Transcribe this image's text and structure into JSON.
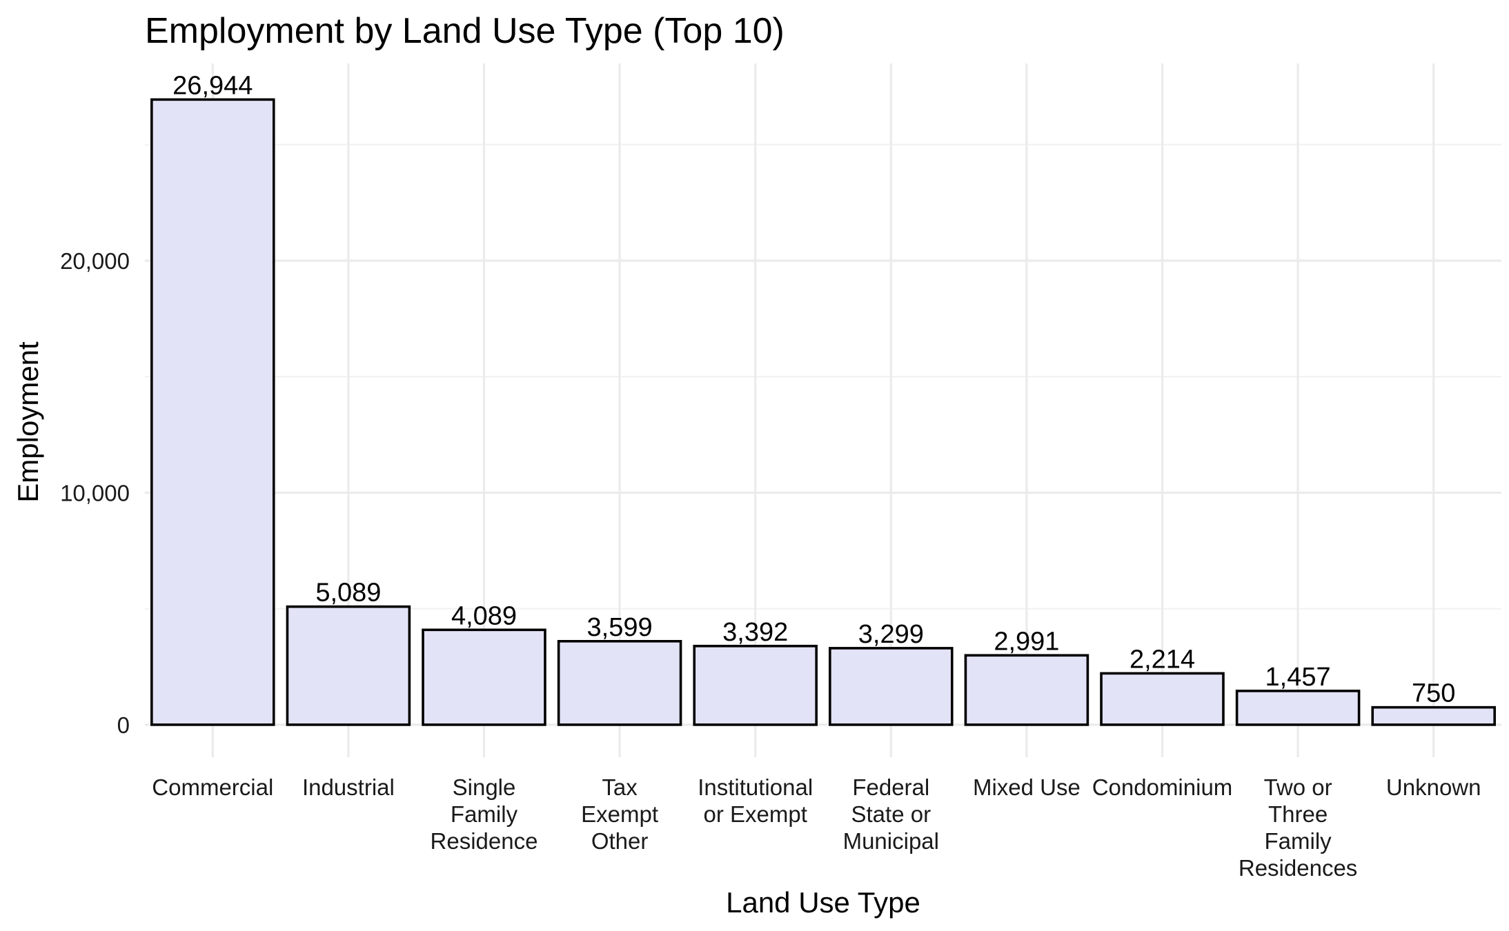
{
  "chart_data": {
    "type": "bar",
    "title": "Employment by Land Use Type (Top 10)",
    "xlabel": "Land Use Type",
    "ylabel": "Employment",
    "categories": [
      [
        "Commercial"
      ],
      [
        "Industrial"
      ],
      [
        "Single",
        "Family",
        "Residence"
      ],
      [
        "Tax",
        "Exempt",
        "Other"
      ],
      [
        "Institutional",
        "or Exempt"
      ],
      [
        "Federal",
        "State or",
        "Municipal"
      ],
      [
        "Mixed Use"
      ],
      [
        "Condominium"
      ],
      [
        "Two or",
        "Three",
        "Family",
        "Residences"
      ],
      [
        "Unknown"
      ]
    ],
    "values": [
      26944,
      5089,
      4089,
      3599,
      3392,
      3299,
      2991,
      2214,
      1457,
      750
    ],
    "value_labels": [
      "26,944",
      "5,089",
      "4,089",
      "3,599",
      "3,392",
      "3,299",
      "2,991",
      "2,214",
      "1,457",
      "750"
    ],
    "ylim": [
      -1400,
      28500
    ],
    "yticks": [
      0,
      10000,
      20000
    ],
    "ytick_labels": [
      "0",
      "10,000",
      "20,000"
    ],
    "grid": true,
    "legend": "none",
    "colors": {
      "bar_fill": "#e3e3f7",
      "bar_stroke": "#000000",
      "grid": "#ebebeb",
      "background": "#ffffff"
    }
  }
}
